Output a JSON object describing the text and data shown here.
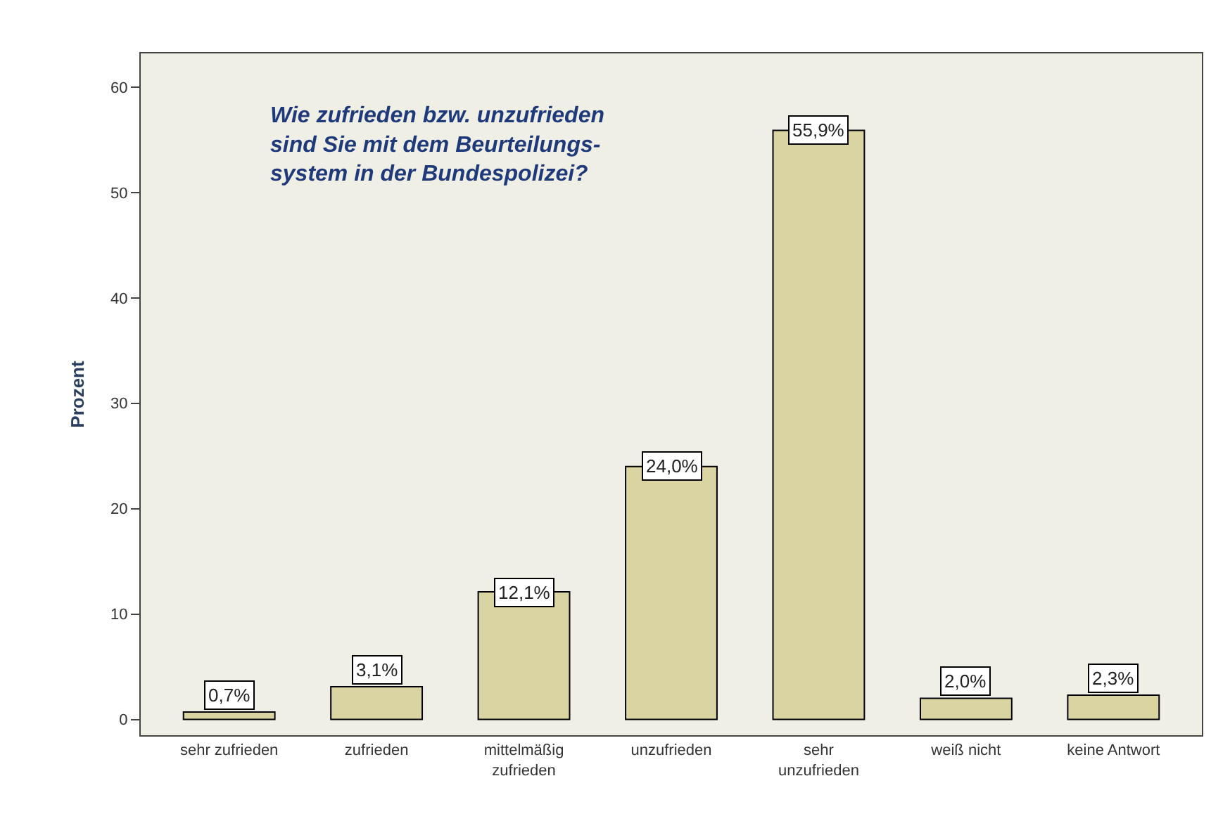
{
  "chart_data": {
    "type": "bar",
    "title": "Wie zufrieden bzw. unzufrieden\nsind Sie mit dem Beurteilungs-\nsystem in der Bundespolizei?",
    "ylabel": "Prozent",
    "categories": [
      "sehr zufrieden",
      "zufrieden",
      "mittelmäßig\nzufrieden",
      "unzufrieden",
      "sehr\nunzufrieden",
      "weiß nicht",
      "keine Antwort"
    ],
    "values": [
      0.7,
      3.1,
      12.1,
      24.0,
      55.9,
      2.0,
      2.3
    ],
    "value_labels": [
      "0,7%",
      "3,1%",
      "12,1%",
      "24,0%",
      "55,9%",
      "2,0%",
      "2,3%"
    ],
    "color": "#d9d4a1",
    "ylim": [
      -1.5,
      63.2
    ],
    "yticks": [
      0,
      10,
      20,
      30,
      40,
      50,
      60
    ],
    "grid": false,
    "legend": false
  }
}
